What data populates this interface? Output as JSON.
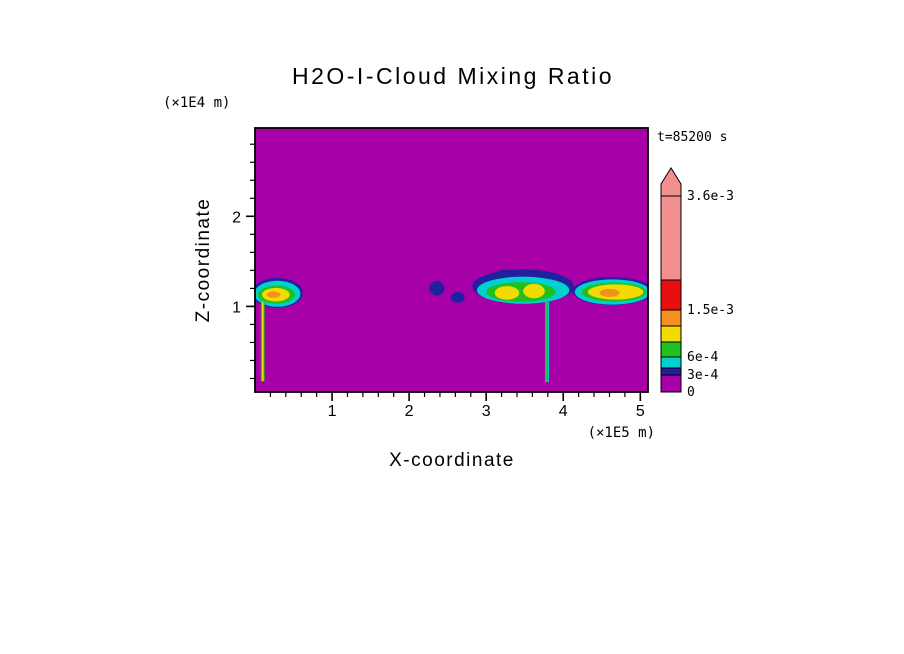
{
  "chart_data": {
    "type": "heatmap",
    "title": "H2O-I-Cloud Mixing Ratio",
    "time_label": "t=85200 s",
    "xlabel": "X-coordinate",
    "x_unit": "(×1E5 m)",
    "ylabel": "Z-coordinate",
    "y_unit": "(×1E4 m)",
    "xlim": [
      0,
      5.1
    ],
    "ylim": [
      0.05,
      2.98
    ],
    "x_ticks": [
      1,
      2,
      3,
      4,
      5
    ],
    "y_ticks": [
      1,
      2
    ],
    "minor_tick_step": 0.2,
    "labeled_levels": [
      "0",
      "3e-4",
      "6e-4",
      "1.5e-3",
      "3.6e-3"
    ],
    "background_value_color": "magenta",
    "palette": {
      "magenta": "#A800A8",
      "navy": "#2020A0",
      "cyan": "#00D0D0",
      "green": "#20C020",
      "yellow": "#F0DC00",
      "orange": "#F59020",
      "red": "#E61010",
      "pink": "#F29090"
    },
    "colorbar": {
      "segments": [
        {
          "color": "magenta",
          "h": 17,
          "label": "0"
        },
        {
          "color": "navy",
          "h": 7,
          "label": "3e-4"
        },
        {
          "color": "cyan",
          "h": 11,
          "label": ""
        },
        {
          "color": "green",
          "h": 15,
          "label": "6e-4"
        },
        {
          "color": "yellow",
          "h": 16,
          "label": ""
        },
        {
          "color": "orange",
          "h": 16,
          "label": ""
        },
        {
          "color": "red",
          "h": 30,
          "label": "1.5e-3"
        },
        {
          "color": "pink",
          "h": 84,
          "label": ""
        }
      ],
      "top_label": "3.6e-3"
    },
    "features": [
      {
        "shape": "ellipse",
        "x": 0.29,
        "z": 1.15,
        "rx": 0.33,
        "ry": 0.165,
        "color": "navy"
      },
      {
        "shape": "ellipse",
        "x": 0.29,
        "z": 1.14,
        "rx": 0.3,
        "ry": 0.145,
        "color": "cyan"
      },
      {
        "shape": "ellipse",
        "x": 0.28,
        "z": 1.13,
        "rx": 0.24,
        "ry": 0.1,
        "color": "green"
      },
      {
        "shape": "ellipse",
        "x": 0.27,
        "z": 1.13,
        "rx": 0.18,
        "ry": 0.075,
        "color": "yellow"
      },
      {
        "shape": "ellipse",
        "x": 0.24,
        "z": 1.13,
        "rx": 0.09,
        "ry": 0.035,
        "color": "orange"
      },
      {
        "shape": "streak",
        "x": 0.1,
        "z_top": 1.05,
        "z_bottom": 0.17,
        "w": 0.05,
        "w_inner": 0.022,
        "outer": "green",
        "inner": "yellow"
      },
      {
        "shape": "ellipse",
        "x": 2.36,
        "z": 1.2,
        "rx": 0.1,
        "ry": 0.08,
        "color": "navy"
      },
      {
        "shape": "ellipse",
        "x": 2.63,
        "z": 1.1,
        "rx": 0.09,
        "ry": 0.06,
        "color": "navy"
      },
      {
        "shape": "ellipse",
        "x": 3.25,
        "z": 1.33,
        "rx": 0.14,
        "ry": 0.08,
        "color": "navy"
      },
      {
        "shape": "ellipse",
        "x": 3.7,
        "z": 1.3,
        "rx": 0.12,
        "ry": 0.07,
        "color": "navy"
      },
      {
        "shape": "ellipse",
        "x": 3.48,
        "z": 1.22,
        "rx": 0.66,
        "ry": 0.19,
        "color": "navy"
      },
      {
        "shape": "ellipse",
        "x": 3.48,
        "z": 1.18,
        "rx": 0.6,
        "ry": 0.15,
        "color": "cyan"
      },
      {
        "shape": "ellipse",
        "x": 3.45,
        "z": 1.16,
        "rx": 0.45,
        "ry": 0.11,
        "color": "green"
      },
      {
        "shape": "ellipse",
        "x": 3.27,
        "z": 1.15,
        "rx": 0.16,
        "ry": 0.075,
        "color": "yellow"
      },
      {
        "shape": "ellipse",
        "x": 3.62,
        "z": 1.17,
        "rx": 0.14,
        "ry": 0.08,
        "color": "yellow"
      },
      {
        "shape": "streak",
        "x": 3.79,
        "z_top": 1.05,
        "z_bottom": 0.16,
        "w": 0.05,
        "w_inner": 0.022,
        "outer": "cyan",
        "inner": "green"
      },
      {
        "shape": "ellipse",
        "x": 4.64,
        "z": 1.17,
        "rx": 0.52,
        "ry": 0.155,
        "color": "navy"
      },
      {
        "shape": "ellipse",
        "x": 4.64,
        "z": 1.16,
        "rx": 0.49,
        "ry": 0.14,
        "color": "cyan"
      },
      {
        "shape": "ellipse",
        "x": 4.66,
        "z": 1.16,
        "rx": 0.42,
        "ry": 0.105,
        "color": "green"
      },
      {
        "shape": "ellipse",
        "x": 4.68,
        "z": 1.16,
        "rx": 0.36,
        "ry": 0.085,
        "color": "yellow"
      },
      {
        "shape": "ellipse",
        "x": 4.6,
        "z": 1.15,
        "rx": 0.13,
        "ry": 0.045,
        "color": "orange"
      }
    ]
  }
}
